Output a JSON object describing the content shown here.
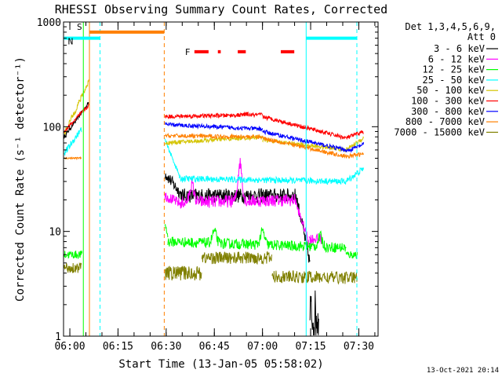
{
  "chart_data": {
    "type": "line",
    "title": "RHESSI Observing Summary Count Rates, Corrected",
    "ylabel": "Corrected Count Rate (s⁻¹ detector⁻¹)",
    "xlabel": "Start Time (13-Jan-05 05:58:02)",
    "x_unit": "minutes (UT)",
    "y_scale": "log",
    "ylim": [
      1,
      1000
    ],
    "xlim": [
      "05:58:02",
      "07:36:00"
    ],
    "y_ticks": [
      {
        "value": 1,
        "label": "1"
      },
      {
        "value": 10,
        "label": "10"
      },
      {
        "value": 100,
        "label": "100"
      },
      {
        "value": 1000,
        "label": "1000"
      }
    ],
    "x_ticks": [
      {
        "value": 360,
        "label": "06:00"
      },
      {
        "value": 375,
        "label": "06:15"
      },
      {
        "value": 390,
        "label": "06:30"
      },
      {
        "value": 405,
        "label": "06:45"
      },
      {
        "value": 420,
        "label": "07:00"
      },
      {
        "value": 435,
        "label": "07:15"
      },
      {
        "value": 450,
        "label": "07:30"
      }
    ],
    "legend_header": [
      "Det 1,3,4,5,6,9,",
      "Att 0"
    ],
    "legend_position": "right",
    "footer": "13-Oct-2021 20:14",
    "series": [
      {
        "name": "3 - 6 keV",
        "color": "#000000",
        "segments": [
          {
            "x0": 358.2,
            "x1": 365.9,
            "v0": 80,
            "v1": 170,
            "noise": 0.02
          },
          {
            "x0": 389.6,
            "x1": 395.0,
            "v0": 36,
            "v1": 22,
            "noise": 0.06
          },
          {
            "x0": 395.0,
            "x1": 430.5,
            "v0": 22,
            "v1": 22,
            "noise": 0.07,
            "bumps": [
              [
                406,
                8
              ],
              [
                414,
                8
              ],
              [
                432,
                24
              ]
            ]
          },
          {
            "x0": 430.5,
            "x1": 434.8,
            "v0": 22,
            "v1": 5,
            "noise": 0.06
          },
          {
            "x0": 434.8,
            "x1": 437.5,
            "v0": 1.6,
            "v1": 1.6,
            "noise": 0.25
          }
        ]
      },
      {
        "name": "6 - 12 keV",
        "color": "#ff00ff",
        "segments": [
          {
            "x0": 389.6,
            "x1": 395.0,
            "v0": 22,
            "v1": 18,
            "noise": 0.05
          },
          {
            "x0": 395.0,
            "x1": 430.5,
            "v0": 19,
            "v1": 20,
            "noise": 0.06,
            "bumps": [
              [
                398,
                28
              ],
              [
                413,
                45
              ],
              [
                432,
                22
              ]
            ]
          },
          {
            "x0": 430.5,
            "x1": 434.5,
            "v0": 18,
            "v1": 8,
            "noise": 0.04
          },
          {
            "x0": 434.5,
            "x1": 438.5,
            "v0": 8.5,
            "v1": 8.5,
            "noise": 0.05
          }
        ]
      },
      {
        "name": "12 - 25 keV",
        "color": "#00ff00",
        "segments": [
          {
            "x0": 358.2,
            "x1": 363.8,
            "v0": 6,
            "v1": 6,
            "noise": 0.04
          },
          {
            "x0": 389.6,
            "x1": 390.5,
            "v0": 12,
            "v1": 9,
            "noise": 0.04
          },
          {
            "x0": 390.5,
            "x1": 446.0,
            "v0": 8,
            "v1": 7,
            "noise": 0.05,
            "bumps": [
              [
                405,
                10
              ],
              [
                420,
                10
              ],
              [
                438,
                9
              ]
            ]
          },
          {
            "x0": 446.0,
            "x1": 449.5,
            "v0": 6,
            "v1": 6,
            "noise": 0.04
          }
        ]
      },
      {
        "name": "25 - 50 keV",
        "color": "#00ffff",
        "segments": [
          {
            "x0": 358.2,
            "x1": 363.6,
            "v0": 55,
            "v1": 95,
            "noise": 0.03
          },
          {
            "x0": 389.6,
            "x1": 394.0,
            "v0": 75,
            "v1": 35,
            "noise": 0.02
          },
          {
            "x0": 394.0,
            "x1": 446.0,
            "v0": 32,
            "v1": 30,
            "noise": 0.03
          },
          {
            "x0": 446.0,
            "x1": 451.5,
            "v0": 30,
            "v1": 40,
            "noise": 0.03
          }
        ]
      },
      {
        "name": "50 - 100 keV",
        "color": "#d4c400",
        "segments": [
          {
            "x0": 358.2,
            "x1": 365.9,
            "v0": 85,
            "v1": 270,
            "noise": 0.03
          },
          {
            "x0": 389.6,
            "x1": 420.0,
            "v0": 70,
            "v1": 80,
            "noise": 0.02
          },
          {
            "x0": 420.0,
            "x1": 446.0,
            "v0": 75,
            "v1": 60,
            "noise": 0.02
          },
          {
            "x0": 446.0,
            "x1": 451.5,
            "v0": 60,
            "v1": 78,
            "noise": 0.02
          }
        ]
      },
      {
        "name": "100 - 300 keV",
        "color": "#ff0000",
        "segments": [
          {
            "x0": 358.2,
            "x1": 365.9,
            "v0": 90,
            "v1": 160,
            "noise": 0.02
          },
          {
            "x0": 389.6,
            "x1": 420.0,
            "v0": 125,
            "v1": 130,
            "noise": 0.02,
            "bumps": [
              [
                405,
                112
              ],
              [
                415,
                132
              ]
            ]
          },
          {
            "x0": 420.0,
            "x1": 446.0,
            "v0": 125,
            "v1": 78,
            "noise": 0.02
          },
          {
            "x0": 446.0,
            "x1": 451.5,
            "v0": 78,
            "v1": 90,
            "noise": 0.02
          }
        ]
      },
      {
        "name": "300 - 800 keV",
        "color": "#0000ff",
        "segments": [
          {
            "x0": 389.6,
            "x1": 420.0,
            "v0": 105,
            "v1": 95,
            "noise": 0.02
          },
          {
            "x0": 420.0,
            "x1": 446.0,
            "v0": 90,
            "v1": 60,
            "noise": 0.02
          },
          {
            "x0": 446.0,
            "x1": 451.5,
            "v0": 58,
            "v1": 68,
            "noise": 0.02
          }
        ]
      },
      {
        "name": "800 - 7000 keV",
        "color": "#ff8000",
        "segments": [
          {
            "x0": 358.2,
            "x1": 363.6,
            "v0": 50,
            "v1": 50,
            "noise": 0.01
          },
          {
            "x0": 389.6,
            "x1": 420.0,
            "v0": 82,
            "v1": 80,
            "noise": 0.02
          },
          {
            "x0": 420.0,
            "x1": 446.0,
            "v0": 78,
            "v1": 52,
            "noise": 0.02
          },
          {
            "x0": 446.0,
            "x1": 451.5,
            "v0": 52,
            "v1": 55,
            "noise": 0.02
          }
        ]
      },
      {
        "name": "7000 - 15000 keV",
        "color": "#808000",
        "segments": [
          {
            "x0": 358.2,
            "x1": 363.6,
            "v0": 4.5,
            "v1": 4.5,
            "noise": 0.05
          },
          {
            "x0": 389.6,
            "x1": 401.0,
            "v0": 4.0,
            "v1": 4.0,
            "noise": 0.07
          },
          {
            "x0": 401.0,
            "x1": 423.0,
            "v0": 5.6,
            "v1": 5.6,
            "noise": 0.06
          },
          {
            "x0": 423.0,
            "x1": 449.5,
            "v0": 3.7,
            "v1": 3.6,
            "noise": 0.06
          }
        ]
      }
    ],
    "vertical_markers": [
      {
        "x": 366.1,
        "color": "#ff8000",
        "style": "solid"
      },
      {
        "x": 369.4,
        "color": "#00ffff",
        "style": "dashed"
      },
      {
        "x": 389.4,
        "color": "#ff8000",
        "style": "dashed"
      },
      {
        "x": 433.6,
        "color": "#00ffff",
        "style": "solid"
      },
      {
        "x": 449.4,
        "color": "#00ffff",
        "style": "dashed"
      },
      {
        "x": 364.2,
        "color": "#00ff00",
        "style": "solid"
      }
    ],
    "state_bars": [
      {
        "label": "S",
        "color": "#ff8000",
        "x0": 366.1,
        "x1": 389.4,
        "value": 800
      },
      {
        "label": "N",
        "color": "#00ffff",
        "x0": 358.2,
        "x1": 369.4,
        "value": 700
      },
      {
        "label": "",
        "color": "#00ffff",
        "x0": 433.6,
        "x1": 449.4,
        "value": 700
      }
    ],
    "flare_bars": {
      "label": "F",
      "color": "#ff0000",
      "value": 520,
      "intervals": [
        [
          398.8,
          403.2
        ],
        [
          406.1,
          407.0
        ],
        [
          412.3,
          414.8
        ],
        [
          425.7,
          429.9
        ]
      ]
    }
  }
}
